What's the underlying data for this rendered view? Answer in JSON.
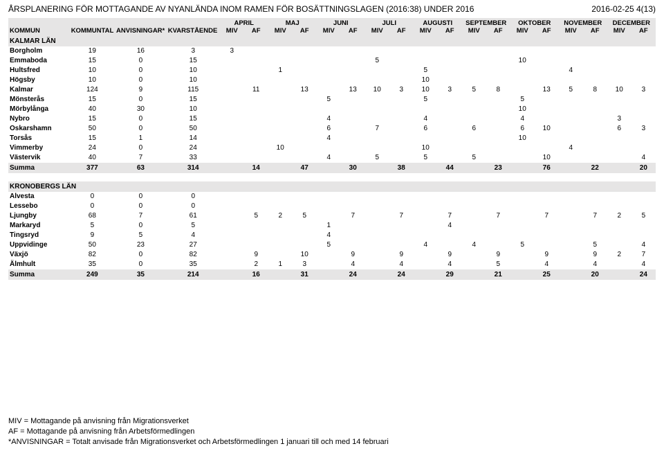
{
  "title": "ÅRSPLANERING FÖR MOTTAGANDE AV NYANLÄNDA INOM RAMEN FÖR BOSÄTTNINGSLAGEN (2016:38) UNDER 2016",
  "page_meta": "2016-02-25  4(13)",
  "header": {
    "kommun": "KOMMUN",
    "kommuntal": "KOMMUNTAL",
    "anvisningar": "ANVISNINGAR*",
    "kvarstaende": "KVARSTÅENDE",
    "months": [
      "APRIL",
      "MAJ",
      "JUNI",
      "JULI",
      "AUGUSTI",
      "SEPTEMBER",
      "OKTOBER",
      "NOVEMBER",
      "DECEMBER"
    ],
    "miv": "MIV",
    "af": "AF"
  },
  "sections": [
    {
      "name": "KALMAR LÄN",
      "rows": [
        {
          "name": "Borgholm",
          "kt": "19",
          "anv": "16",
          "kv": "3",
          "cells": [
            "3",
            "",
            "",
            "",
            "",
            "",
            "",
            "",
            "",
            "",
            "",
            "",
            "",
            "",
            "",
            "",
            "",
            ""
          ]
        },
        {
          "name": "Emmaboda",
          "kt": "15",
          "anv": "0",
          "kv": "15",
          "cells": [
            "",
            "",
            "",
            "",
            "",
            "",
            "5",
            "",
            "",
            "",
            "",
            "",
            "10",
            "",
            "",
            "",
            "",
            ""
          ]
        },
        {
          "name": "Hultsfred",
          "kt": "10",
          "anv": "0",
          "kv": "10",
          "cells": [
            "",
            "",
            "1",
            "",
            "",
            "",
            "",
            "",
            "5",
            "",
            "",
            "",
            "",
            "",
            "4",
            "",
            "",
            ""
          ]
        },
        {
          "name": "Högsby",
          "kt": "10",
          "anv": "0",
          "kv": "10",
          "cells": [
            "",
            "",
            "",
            "",
            "",
            "",
            "",
            "",
            "10",
            "",
            "",
            "",
            "",
            "",
            "",
            "",
            "",
            ""
          ]
        },
        {
          "name": "Kalmar",
          "kt": "124",
          "anv": "9",
          "kv": "115",
          "cells": [
            "",
            "11",
            "",
            "13",
            "",
            "13",
            "10",
            "3",
            "10",
            "3",
            "5",
            "8",
            "",
            "13",
            "5",
            "8",
            "10",
            "3"
          ]
        },
        {
          "name": "Mönsterås",
          "kt": "15",
          "anv": "0",
          "kv": "15",
          "cells": [
            "",
            "",
            "",
            "",
            "5",
            "",
            "",
            "",
            "5",
            "",
            "",
            "",
            "5",
            "",
            "",
            "",
            "",
            ""
          ]
        },
        {
          "name": "Mörbylånga",
          "kt": "40",
          "anv": "30",
          "kv": "10",
          "cells": [
            "",
            "",
            "",
            "",
            "",
            "",
            "",
            "",
            "",
            "",
            "",
            "",
            "10",
            "",
            "",
            "",
            "",
            ""
          ]
        },
        {
          "name": "Nybro",
          "kt": "15",
          "anv": "0",
          "kv": "15",
          "cells": [
            "",
            "",
            "",
            "",
            "4",
            "",
            "",
            "",
            "4",
            "",
            "",
            "",
            "4",
            "",
            "",
            "",
            "3",
            ""
          ]
        },
        {
          "name": "Oskarshamn",
          "kt": "50",
          "anv": "0",
          "kv": "50",
          "cells": [
            "",
            "",
            "",
            "",
            "6",
            "",
            "7",
            "",
            "6",
            "",
            "6",
            "",
            "6",
            "10",
            "",
            "",
            "6",
            "3"
          ]
        },
        {
          "name": "Torsås",
          "kt": "15",
          "anv": "1",
          "kv": "14",
          "cells": [
            "",
            "",
            "",
            "",
            "4",
            "",
            "",
            "",
            "",
            "",
            "",
            "",
            "10",
            "",
            "",
            "",
            "",
            ""
          ]
        },
        {
          "name": "Vimmerby",
          "kt": "24",
          "anv": "0",
          "kv": "24",
          "cells": [
            "",
            "",
            "10",
            "",
            "",
            "",
            "",
            "",
            "10",
            "",
            "",
            "",
            "",
            "",
            "4",
            "",
            "",
            ""
          ]
        },
        {
          "name": "Västervik",
          "kt": "40",
          "anv": "7",
          "kv": "33",
          "cells": [
            "",
            "",
            "",
            "",
            "4",
            "",
            "5",
            "",
            "5",
            "",
            "5",
            "",
            "",
            "10",
            "",
            "",
            "",
            "4"
          ]
        }
      ],
      "sum": {
        "label": "Summa",
        "kt": "377",
        "anv": "63",
        "kv": "314",
        "cells": [
          "",
          "14",
          "",
          "47",
          "",
          "30",
          "",
          "38",
          "",
          "44",
          "",
          "23",
          "",
          "76",
          "",
          "22",
          "",
          "20"
        ]
      }
    },
    {
      "name": "KRONOBERGS LÄN",
      "rows": [
        {
          "name": "Alvesta",
          "kt": "0",
          "anv": "0",
          "kv": "0",
          "cells": [
            "",
            "",
            "",
            "",
            "",
            "",
            "",
            "",
            "",
            "",
            "",
            "",
            "",
            "",
            "",
            "",
            "",
            ""
          ]
        },
        {
          "name": "Lessebo",
          "kt": "0",
          "anv": "0",
          "kv": "0",
          "cells": [
            "",
            "",
            "",
            "",
            "",
            "",
            "",
            "",
            "",
            "",
            "",
            "",
            "",
            "",
            "",
            "",
            "",
            ""
          ]
        },
        {
          "name": "Ljungby",
          "kt": "68",
          "anv": "7",
          "kv": "61",
          "cells": [
            "",
            "5",
            "2",
            "5",
            "",
            "7",
            "",
            "7",
            "",
            "7",
            "",
            "7",
            "",
            "7",
            "",
            "7",
            "2",
            "5"
          ]
        },
        {
          "name": "Markaryd",
          "kt": "5",
          "anv": "0",
          "kv": "5",
          "cells": [
            "",
            "",
            "",
            "",
            "1",
            "",
            "",
            "",
            "",
            "4",
            "",
            "",
            "",
            "",
            "",
            "",
            "",
            ""
          ]
        },
        {
          "name": "Tingsryd",
          "kt": "9",
          "anv": "5",
          "kv": "4",
          "cells": [
            "",
            "",
            "",
            "",
            "4",
            "",
            "",
            "",
            "",
            "",
            "",
            "",
            "",
            "",
            "",
            "",
            "",
            ""
          ]
        },
        {
          "name": "Uppvidinge",
          "kt": "50",
          "anv": "23",
          "kv": "27",
          "cells": [
            "",
            "",
            "",
            "",
            "5",
            "",
            "",
            "",
            "4",
            "",
            "4",
            "",
            "5",
            "",
            "",
            "5",
            "",
            "4"
          ]
        },
        {
          "name": "Växjö",
          "kt": "82",
          "anv": "0",
          "kv": "82",
          "cells": [
            "",
            "9",
            "",
            "10",
            "",
            "9",
            "",
            "9",
            "",
            "9",
            "",
            "9",
            "",
            "9",
            "",
            "9",
            "2",
            "7"
          ]
        },
        {
          "name": "Älmhult",
          "kt": "35",
          "anv": "0",
          "kv": "35",
          "cells": [
            "",
            "2",
            "1",
            "3",
            "",
            "4",
            "",
            "4",
            "",
            "4",
            "",
            "5",
            "",
            "4",
            "",
            "4",
            "",
            "4"
          ]
        }
      ],
      "sum": {
        "label": "Summa",
        "kt": "249",
        "anv": "35",
        "kv": "214",
        "cells": [
          "",
          "16",
          "",
          "31",
          "",
          "24",
          "",
          "24",
          "",
          "29",
          "",
          "21",
          "",
          "25",
          "",
          "20",
          "",
          "24"
        ]
      }
    }
  ],
  "footer": [
    "MIV = Mottagande på anvisning från Migrationsverket",
    "AF = Mottagande på anvisning från Arbetsförmedlingen",
    "*ANVISNINGAR = Totalt anvisade från Migrationsverket och Arbetsförmedlingen 1 januari till och med 14 februari"
  ]
}
